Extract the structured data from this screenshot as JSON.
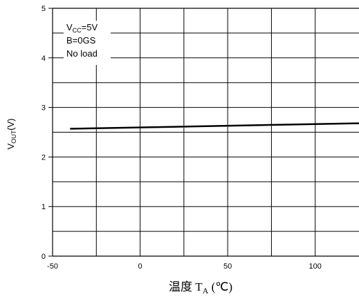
{
  "chart_data": {
    "type": "line",
    "ylabel_main": "V",
    "ylabel_sub": "OUT",
    "ylabel_rest": "(V)",
    "xlabel_main": "温度  T",
    "xlabel_sub": "A",
    "xlabel_rest": " (℃)",
    "xlim": [
      -50,
      125
    ],
    "ylim": [
      0,
      5
    ],
    "x_ticks": [
      {
        "value": -50,
        "label": "-50"
      },
      {
        "value": 0,
        "label": "0"
      },
      {
        "value": 50,
        "label": "50"
      },
      {
        "value": 100,
        "label": "100"
      }
    ],
    "y_ticks": [
      {
        "value": 0,
        "label": "0"
      },
      {
        "value": 1,
        "label": "1"
      },
      {
        "value": 2,
        "label": "2"
      },
      {
        "value": 3,
        "label": "3"
      },
      {
        "value": 4,
        "label": "4"
      },
      {
        "value": 5,
        "label": "5"
      }
    ],
    "x_grid": [
      -25,
      0,
      25,
      50,
      75,
      100
    ],
    "y_grid": [
      0.5,
      1,
      1.5,
      2,
      2.5,
      3,
      3.5,
      4,
      4.5
    ],
    "grid": true,
    "annotations": [
      {
        "main": "V",
        "sub": "CC",
        "rest": "=5V"
      },
      {
        "main": "B=0GS",
        "sub": "",
        "rest": ""
      },
      {
        "main": "No load",
        "sub": "",
        "rest": ""
      }
    ],
    "series": [
      {
        "x": [
          -40,
          125
        ],
        "y": [
          2.57,
          2.68
        ]
      }
    ]
  }
}
